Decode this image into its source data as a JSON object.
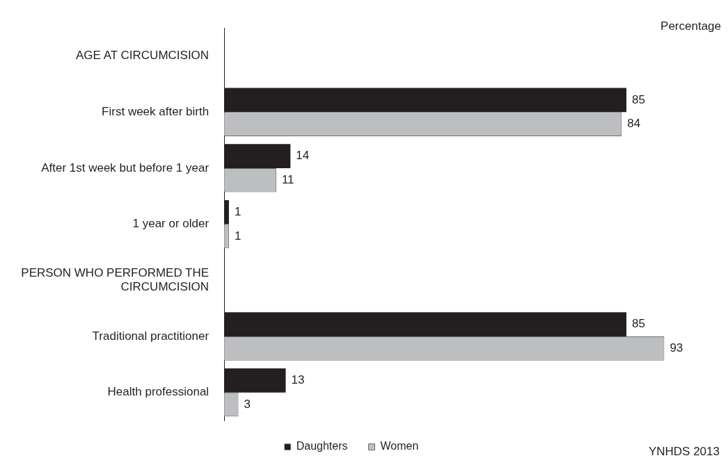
{
  "chart_data": {
    "type": "bar",
    "orientation": "horizontal",
    "categories": [
      "AGE AT CIRCUMCISION",
      "First week after birth",
      "After 1st week but before 1 year",
      "1 year or older",
      "PERSON WHO PERFORMED THE CIRCUMCISION",
      "Traditional practitioner",
      "Health professional"
    ],
    "series": [
      {
        "name": "Daughters",
        "color": "#231f20",
        "values": [
          null,
          85,
          14,
          1,
          null,
          85,
          13
        ]
      },
      {
        "name": "Women",
        "color": "#bcbec0",
        "values": [
          null,
          84,
          11,
          1,
          null,
          93,
          3
        ]
      }
    ],
    "tick_labels": "y",
    "data_labels": true,
    "grid": false,
    "legend": "bottom",
    "annotations": [
      "Percentage",
      "YNHDS 2013"
    ]
  }
}
